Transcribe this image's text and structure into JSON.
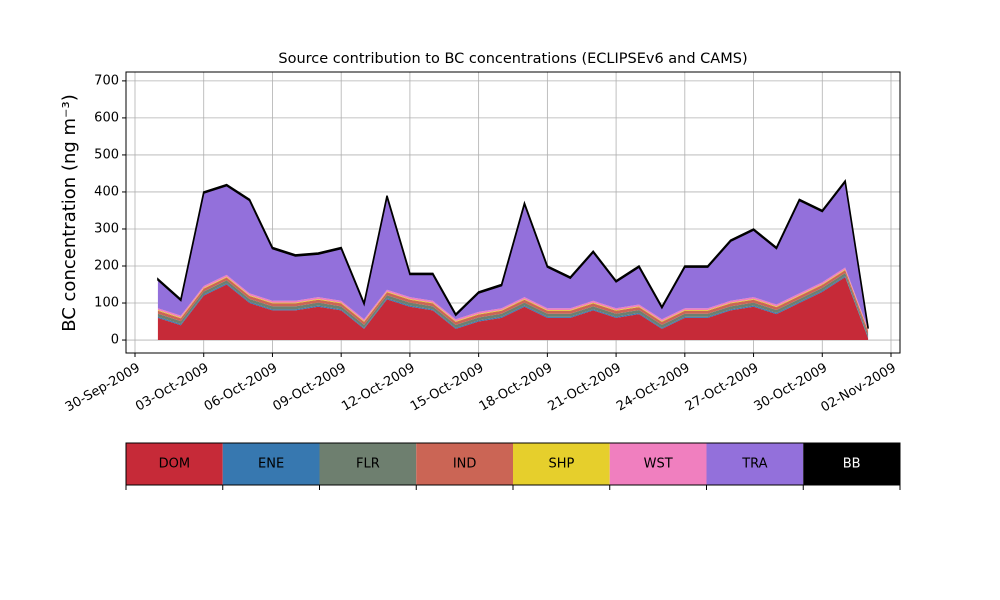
{
  "chart_data": {
    "type": "stacked_area",
    "title": "Source contribution to BC concentrations (ECLIPSEv6 and CAMS)",
    "y_label": "BC concentration (ng m⁻³)",
    "x": [
      "2009-10-01",
      "2009-10-02",
      "2009-10-03",
      "2009-10-04",
      "2009-10-05",
      "2009-10-06",
      "2009-10-07",
      "2009-10-08",
      "2009-10-09",
      "2009-10-10",
      "2009-10-11",
      "2009-10-12",
      "2009-10-13",
      "2009-10-14",
      "2009-10-15",
      "2009-10-16",
      "2009-10-17",
      "2009-10-18",
      "2009-10-19",
      "2009-10-20",
      "2009-10-21",
      "2009-10-22",
      "2009-10-23",
      "2009-10-24",
      "2009-10-25",
      "2009-10-26",
      "2009-10-27",
      "2009-10-28",
      "2009-10-29",
      "2009-10-30",
      "2009-10-31",
      "2009-11-01"
    ],
    "series": [
      {
        "name": "DOM",
        "color": "#c62a38",
        "values": [
          60,
          40,
          120,
          150,
          100,
          80,
          80,
          90,
          80,
          30,
          110,
          90,
          80,
          30,
          50,
          60,
          90,
          60,
          60,
          80,
          60,
          70,
          30,
          60,
          60,
          80,
          90,
          70,
          100,
          130,
          170,
          5
        ]
      },
      {
        "name": "ENE",
        "color": "#3778b0",
        "values": [
          3,
          3,
          3,
          3,
          3,
          3,
          3,
          3,
          3,
          3,
          3,
          3,
          3,
          3,
          3,
          3,
          3,
          3,
          3,
          3,
          3,
          3,
          3,
          3,
          3,
          3,
          3,
          3,
          3,
          3,
          3,
          3
        ]
      },
      {
        "name": "FLR",
        "color": "#6e7f6f",
        "values": [
          8,
          8,
          8,
          8,
          8,
          8,
          8,
          8,
          8,
          8,
          8,
          8,
          8,
          8,
          8,
          8,
          8,
          8,
          8,
          8,
          8,
          8,
          8,
          8,
          8,
          8,
          8,
          8,
          8,
          8,
          8,
          8
        ]
      },
      {
        "name": "IND",
        "color": "#cb6555",
        "values": [
          8,
          8,
          8,
          8,
          8,
          8,
          8,
          8,
          8,
          8,
          8,
          8,
          8,
          8,
          8,
          8,
          8,
          8,
          8,
          8,
          8,
          8,
          8,
          8,
          8,
          8,
          8,
          8,
          8,
          8,
          8,
          8
        ]
      },
      {
        "name": "SHP",
        "color": "#e6cf2c",
        "values": [
          2,
          2,
          2,
          2,
          2,
          2,
          2,
          2,
          2,
          2,
          2,
          2,
          2,
          2,
          2,
          2,
          2,
          2,
          2,
          2,
          2,
          2,
          2,
          2,
          2,
          2,
          2,
          2,
          2,
          2,
          2,
          2
        ]
      },
      {
        "name": "WST",
        "color": "#f07fbf",
        "values": [
          5,
          5,
          5,
          5,
          5,
          5,
          5,
          5,
          5,
          5,
          5,
          5,
          5,
          5,
          5,
          5,
          5,
          5,
          5,
          5,
          5,
          5,
          5,
          5,
          5,
          5,
          5,
          5,
          5,
          5,
          5,
          5
        ]
      },
      {
        "name": "TRA",
        "color": "#9370db",
        "values": [
          76,
          41,
          251,
          241,
          251,
          141,
          121,
          116,
          141,
          41,
          251,
          61,
          71,
          11,
          51,
          61,
          251,
          111,
          81,
          131,
          71,
          101,
          31,
          111,
          111,
          161,
          181,
          151,
          251,
          191,
          231,
          0
        ]
      },
      {
        "name": "BB",
        "color": "#000000",
        "values": [
          3,
          3,
          3,
          3,
          3,
          3,
          3,
          3,
          3,
          3,
          3,
          3,
          3,
          3,
          3,
          3,
          3,
          3,
          3,
          3,
          3,
          3,
          3,
          3,
          3,
          3,
          3,
          3,
          3,
          3,
          3,
          3
        ]
      }
    ],
    "xlim": [
      "2009-09-30",
      "2009-11-02"
    ],
    "xticks": [
      {
        "value": "2009-09-30",
        "label": "30-Sep-2009"
      },
      {
        "value": "2009-10-03",
        "label": "03-Oct-2009"
      },
      {
        "value": "2009-10-06",
        "label": "06-Oct-2009"
      },
      {
        "value": "2009-10-09",
        "label": "09-Oct-2009"
      },
      {
        "value": "2009-10-12",
        "label": "12-Oct-2009"
      },
      {
        "value": "2009-10-15",
        "label": "15-Oct-2009"
      },
      {
        "value": "2009-10-18",
        "label": "18-Oct-2009"
      },
      {
        "value": "2009-10-21",
        "label": "21-Oct-2009"
      },
      {
        "value": "2009-10-24",
        "label": "24-Oct-2009"
      },
      {
        "value": "2009-10-27",
        "label": "27-Oct-2009"
      },
      {
        "value": "2009-10-30",
        "label": "30-Oct-2009"
      },
      {
        "value": "2009-11-02",
        "label": "02-Nov-2009"
      }
    ],
    "ylim": [
      -35,
      724
    ],
    "yticks": [
      0,
      100,
      200,
      300,
      400,
      500,
      600,
      700
    ],
    "grid": true
  }
}
